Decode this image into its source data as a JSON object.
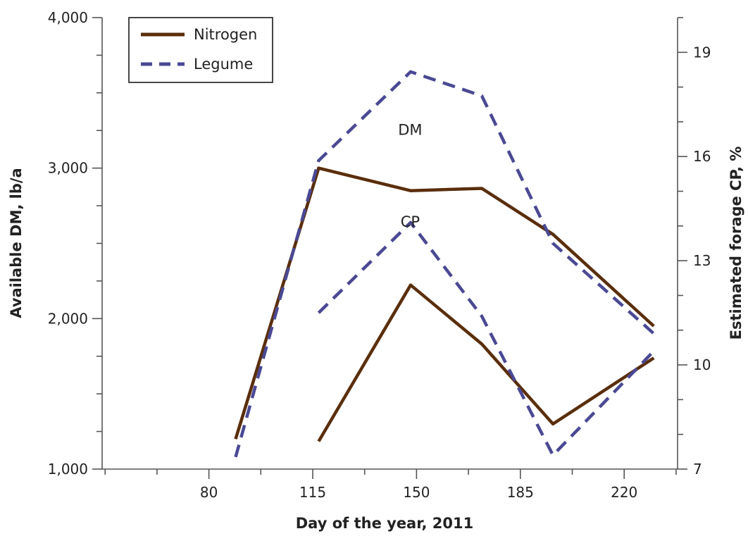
{
  "chart_data": {
    "type": "line",
    "xlabel": "Day of the year, 2011",
    "ylabel_left": "Available DM, lb/a",
    "ylabel_right": "Estimated forage CP, %",
    "xlim": [
      44,
      238
    ],
    "x_ticks": [
      80,
      115,
      150,
      185,
      220
    ],
    "x_ticks_labeled": [
      "80",
      "115",
      "150",
      "185",
      "220"
    ],
    "ylim_left": [
      1000,
      4000
    ],
    "y_ticks_left": [
      1000,
      2000,
      3000,
      4000
    ],
    "y_ticks_left_labels": [
      "1,000",
      "2,000",
      "3,000",
      "4,000"
    ],
    "ylim_right": [
      7,
      20
    ],
    "y_ticks_right": [
      7,
      10,
      13,
      16,
      19
    ],
    "y_ticks_right_labels": [
      "7",
      "10",
      "13",
      "16",
      "19"
    ],
    "legend": {
      "placement": "top-left",
      "entries": [
        "Nitrogen",
        "Legume"
      ]
    },
    "annotations": [
      {
        "text": "DM",
        "x": 150,
        "y_left": 3220
      },
      {
        "text": "CP",
        "x": 150,
        "y_left": 2610
      }
    ],
    "series": [
      {
        "name": "Nitrogen",
        "group": "DM",
        "axis": "left",
        "color": "#5a2e0c",
        "dash": "solid",
        "x": [
          89,
          117,
          148,
          172,
          196,
          230
        ],
        "y": [
          1200,
          3000,
          2850,
          2865,
          2560,
          1950
        ]
      },
      {
        "name": "Legume",
        "group": "DM",
        "axis": "left",
        "color": "#4a4994",
        "dash": "dashed",
        "x": [
          89,
          117,
          148,
          172,
          196,
          230
        ],
        "y": [
          1080,
          3050,
          3640,
          3480,
          2500,
          1900
        ]
      },
      {
        "name": "Nitrogen",
        "group": "CP",
        "axis": "right",
        "color": "#5a2e0c",
        "dash": "solid",
        "x": [
          117,
          148,
          172,
          196,
          230
        ],
        "y": [
          7.8,
          12.3,
          10.6,
          8.3,
          10.2
        ]
      },
      {
        "name": "Legume",
        "group": "CP",
        "axis": "right",
        "color": "#4a4994",
        "dash": "dashed",
        "x": [
          117,
          148,
          172,
          196,
          230
        ],
        "y": [
          11.5,
          14.1,
          11.4,
          7.4,
          10.4
        ]
      }
    ]
  }
}
